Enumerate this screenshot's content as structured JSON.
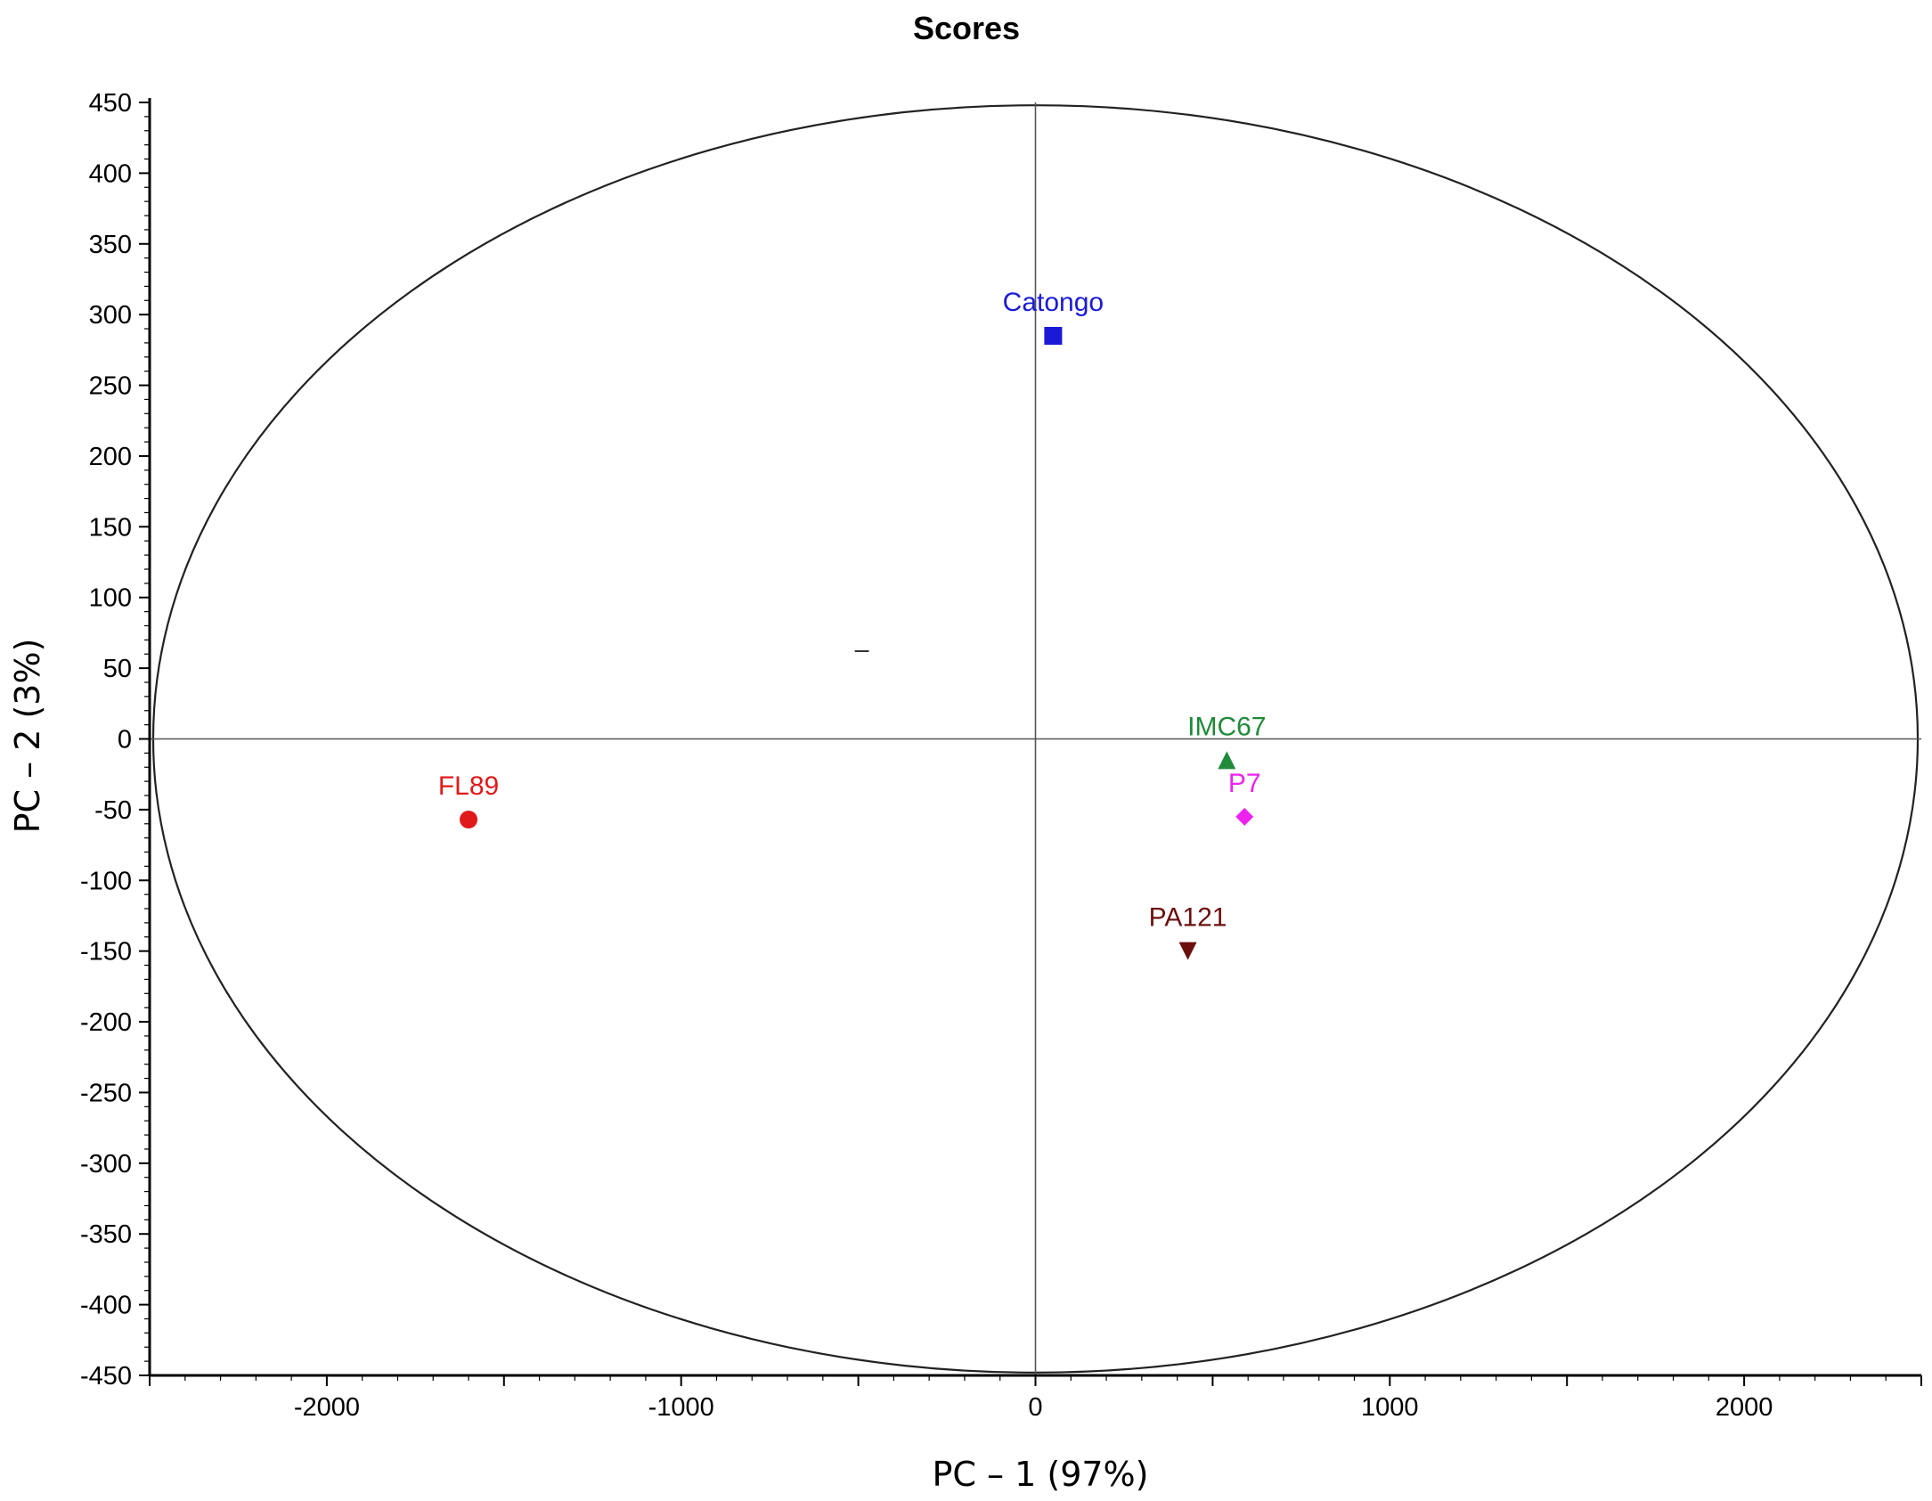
{
  "chart_data": {
    "type": "scatter",
    "title": "Scores",
    "xlabel": "PC – 1 (97%)",
    "ylabel": "PC – 2 (3%)",
    "xlim": [
      -2500,
      2500
    ],
    "ylim": [
      -450,
      450
    ],
    "xticks": [
      -2000,
      -1000,
      0,
      1000,
      2000
    ],
    "yticks": [
      450,
      400,
      350,
      300,
      250,
      200,
      150,
      100,
      50,
      0,
      -50,
      -100,
      -150,
      -200,
      -250,
      -300,
      -350,
      -400,
      -450
    ],
    "ellipse": {
      "cx": 0,
      "cy": 0,
      "rx": 2490,
      "ry": 448
    },
    "grid": false,
    "points": [
      {
        "label": "Catongo",
        "x": 50,
        "y": 285,
        "marker": "square",
        "color": "#1a1ad6"
      },
      {
        "label": "FL89",
        "x": -1600,
        "y": -57,
        "marker": "circle",
        "color": "#e01a1a"
      },
      {
        "label": "IMC67",
        "x": 540,
        "y": -15,
        "marker": "triangle-up",
        "color": "#1f8a3a"
      },
      {
        "label": "P7",
        "x": 590,
        "y": -55,
        "marker": "diamond",
        "color": "#ee22ee"
      },
      {
        "label": "PA121",
        "x": 430,
        "y": -150,
        "marker": "triangle-down",
        "color": "#6b0f0f"
      }
    ]
  }
}
